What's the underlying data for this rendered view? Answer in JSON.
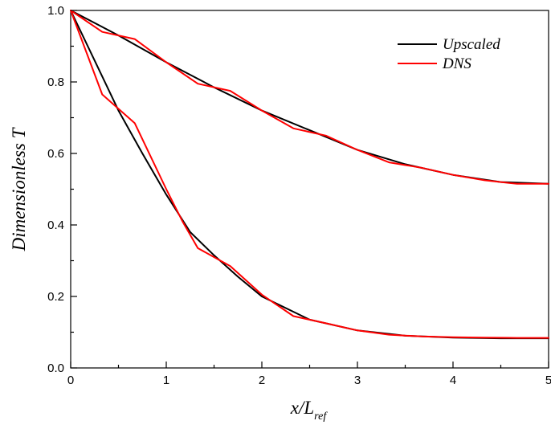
{
  "chart_data": {
    "type": "line",
    "xlabel": "x/L",
    "xlabel_sub": "ref",
    "ylabel": "Dimensionless T",
    "xlim": [
      0,
      5
    ],
    "ylim": [
      0,
      1.0
    ],
    "x_ticks": [
      "0",
      "1",
      "2",
      "3",
      "4",
      "5"
    ],
    "y_ticks": [
      "0.0",
      "0.2",
      "0.4",
      "0.6",
      "0.8",
      "1.0"
    ],
    "grid": false,
    "legend_position": "top-right",
    "series": [
      {
        "name": "Upscaled",
        "color": "#000000",
        "curves": [
          {
            "x": [
              0,
              0.5,
              1,
              1.5,
              2,
              2.5,
              3,
              3.5,
              4,
              4.5,
              5
            ],
            "y": [
              1.0,
              0.93,
              0.855,
              0.785,
              0.72,
              0.665,
              0.61,
              0.57,
              0.54,
              0.52,
              0.515
            ]
          },
          {
            "x": [
              0,
              0.25,
              0.5,
              0.75,
              1,
              1.25,
              1.5,
              1.75,
              2,
              2.5,
              3,
              3.5,
              4,
              4.5,
              5
            ],
            "y": [
              1.0,
              0.86,
              0.72,
              0.6,
              0.485,
              0.38,
              0.315,
              0.255,
              0.2,
              0.135,
              0.105,
              0.09,
              0.085,
              0.083,
              0.083
            ]
          }
        ]
      },
      {
        "name": "DNS",
        "color": "#ff0000",
        "curves": [
          {
            "x": [
              0,
              0.33,
              0.67,
              1,
              1.33,
              1.67,
              2,
              2.33,
              2.67,
              3,
              3.33,
              3.67,
              4,
              4.33,
              4.67,
              5
            ],
            "y": [
              1.0,
              0.94,
              0.92,
              0.855,
              0.795,
              0.775,
              0.72,
              0.67,
              0.65,
              0.61,
              0.575,
              0.56,
              0.54,
              0.525,
              0.515,
              0.515
            ]
          },
          {
            "x": [
              0,
              0.33,
              0.67,
              1,
              1.17,
              1.33,
              1.67,
              2,
              2.33,
              2.67,
              3,
              3.33,
              3.67,
              4,
              4.33,
              4.67,
              5
            ],
            "y": [
              1.0,
              0.765,
              0.685,
              0.5,
              0.41,
              0.335,
              0.285,
              0.205,
              0.145,
              0.125,
              0.105,
              0.093,
              0.088,
              0.086,
              0.085,
              0.084,
              0.084
            ]
          }
        ]
      }
    ]
  }
}
